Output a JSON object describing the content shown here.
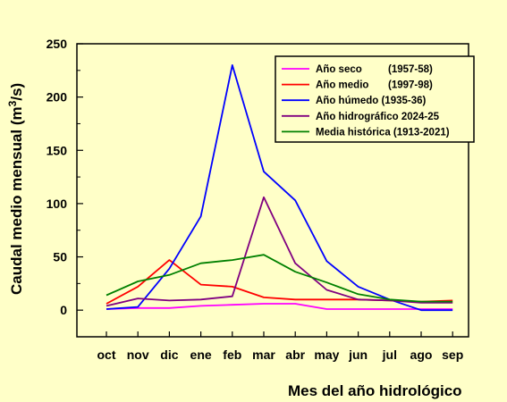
{
  "chart_data": {
    "type": "line",
    "categories": [
      "oct",
      "nov",
      "dic",
      "ene",
      "feb",
      "mar",
      "abr",
      "may",
      "jun",
      "jul",
      "ago",
      "sep"
    ],
    "xlabel": "Mes del año hidrológico",
    "ylabel": "Caudal medio mensual (m",
    "ylabel_sup": "3",
    "ylabel_end": "/s)",
    "ylim": [
      -25,
      250
    ],
    "yticks": [
      0,
      50,
      100,
      150,
      200,
      250
    ],
    "grid": false,
    "legend_position": "top-right",
    "series": [
      {
        "name": "Año seco",
        "period": "(1957-58)",
        "color": "#ff00ff",
        "values": [
          1,
          2,
          2,
          4,
          5,
          6,
          6,
          1,
          1,
          1,
          1,
          1
        ]
      },
      {
        "name": "Año medio",
        "period": "(1997-98)",
        "color": "#ff0000",
        "values": [
          6,
          22,
          47,
          24,
          22,
          12,
          10,
          10,
          10,
          9,
          8,
          9
        ]
      },
      {
        "name": "Año húmedo (1935-36)",
        "period": "",
        "color": "#0000ff",
        "values": [
          1,
          3,
          39,
          88,
          230,
          130,
          103,
          46,
          22,
          10,
          0,
          0
        ]
      },
      {
        "name": "Año hidrográfico 2024-25",
        "period": "",
        "color": "#800080",
        "values": [
          4,
          11,
          9,
          10,
          13,
          106,
          44,
          19,
          10,
          9,
          7,
          7
        ]
      },
      {
        "name": "Media histórica (1913-2021)",
        "period": "",
        "color": "#008000",
        "values": [
          14,
          27,
          33,
          44,
          47,
          52,
          36,
          26,
          15,
          10,
          8,
          8
        ]
      }
    ]
  }
}
